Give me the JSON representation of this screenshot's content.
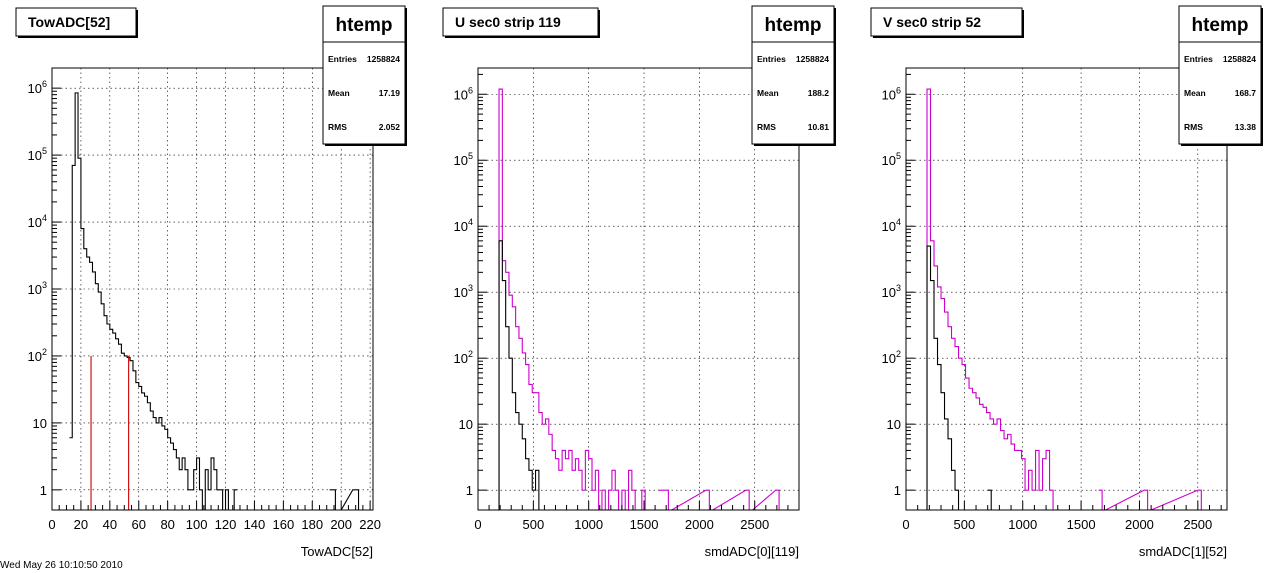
{
  "footer_text": "Wed May 26 10:10:50 2010",
  "chart_data": [
    {
      "type": "bar",
      "title": "TowADC[52]",
      "xlabel": "TowADC[52]",
      "ylabel": "",
      "log_y": true,
      "xlim": [
        0,
        222
      ],
      "ylim": [
        0.5,
        2000000
      ],
      "grid": true,
      "x_ticks": [
        0,
        20,
        40,
        60,
        80,
        100,
        120,
        140,
        160,
        180,
        200,
        220
      ],
      "y_ticks": [
        {
          "value": 1,
          "label": "1"
        },
        {
          "value": 10,
          "label": "10"
        },
        {
          "value": 100,
          "label": "10^2"
        },
        {
          "value": 1000,
          "label": "10^3"
        },
        {
          "value": 10000,
          "label": "10^4"
        },
        {
          "value": 100000,
          "label": "10^5"
        },
        {
          "value": 1000000,
          "label": "10^6"
        }
      ],
      "stats": {
        "name": "htemp",
        "entries_label": "Entries",
        "entries": "1258824",
        "mean_label": "Mean",
        "mean": "17.19",
        "rms_label": "RMS",
        "rms": "2.052"
      },
      "markers": [
        {
          "x": 27,
          "top": 100,
          "color": "#cc0000"
        },
        {
          "x": 53,
          "top": 100,
          "color": "#cc0000"
        }
      ],
      "series": [
        {
          "color": "#000000",
          "x": [
            12,
            14,
            16,
            18,
            20,
            22,
            24,
            26,
            28,
            30,
            32,
            34,
            36,
            38,
            40,
            42,
            44,
            46,
            48,
            50,
            52,
            54,
            56,
            58,
            60,
            62,
            64,
            66,
            68,
            70,
            72,
            74,
            76,
            78,
            80,
            82,
            84,
            86,
            88,
            90,
            92,
            94,
            96,
            98,
            100,
            102,
            104,
            106,
            108,
            110,
            112,
            114,
            116,
            118,
            120,
            122,
            124,
            126
          ],
          "values": [
            6,
            70000,
            850000,
            90000,
            8000,
            4000,
            3000,
            2500,
            1800,
            1200,
            900,
            600,
            400,
            300,
            250,
            220,
            180,
            150,
            110,
            100,
            95,
            85,
            60,
            40,
            35,
            28,
            25,
            20,
            15,
            12,
            10,
            12,
            9,
            8,
            6,
            5,
            4,
            3,
            2,
            3,
            2,
            1,
            1,
            2,
            3,
            1,
            0,
            2,
            1,
            3,
            2,
            1,
            1,
            0,
            1,
            0,
            0,
            1
          ]
        },
        {
          "color": "#000000",
          "x": [
            192,
            196,
            208,
            212
          ],
          "values": [
            1,
            0,
            1,
            0
          ]
        }
      ]
    },
    {
      "type": "bar",
      "title": "U sec0 strip 119",
      "xlabel": "smdADC[0][119]",
      "ylabel": "",
      "log_y": true,
      "xlim": [
        0,
        2900
      ],
      "ylim": [
        0.5,
        2500000
      ],
      "grid": true,
      "x_ticks": [
        0,
        500,
        1000,
        1500,
        2000,
        2500
      ],
      "y_ticks": [
        {
          "value": 1,
          "label": "1"
        },
        {
          "value": 10,
          "label": "10"
        },
        {
          "value": 100,
          "label": "10^2"
        },
        {
          "value": 1000,
          "label": "10^3"
        },
        {
          "value": 10000,
          "label": "10^4"
        },
        {
          "value": 100000,
          "label": "10^5"
        },
        {
          "value": 1000000,
          "label": "10^6"
        }
      ],
      "stats": {
        "name": "htemp",
        "entries_label": "Entries",
        "entries": "1258824",
        "mean_label": "Mean",
        "mean": "188.2",
        "rms_label": "RMS",
        "rms": "10.81"
      },
      "markers": [],
      "series": [
        {
          "color": "#cc00cc",
          "x": [
            160,
            190,
            220,
            250,
            280,
            310,
            340,
            370,
            400,
            430,
            460,
            490,
            520,
            550,
            580,
            610,
            640,
            670,
            700,
            730,
            760,
            790,
            820,
            850,
            880,
            910,
            940,
            970,
            1000,
            1030,
            1060,
            1090,
            1120,
            1150,
            1180,
            1210,
            1240,
            1270,
            1300,
            1330,
            1360,
            1390,
            1420,
            1450,
            1480,
            1510,
            1540
          ],
          "values": [
            0,
            1200000,
            3000,
            2000,
            900,
            600,
            300,
            200,
            120,
            80,
            40,
            30,
            30,
            15,
            10,
            12,
            7,
            4,
            3,
            2,
            4,
            3,
            4,
            2,
            3,
            2,
            1,
            4,
            3,
            1,
            2,
            0,
            1,
            0,
            1,
            2,
            1,
            0,
            1,
            0,
            2,
            1,
            0,
            0,
            1,
            0,
            0
          ]
        },
        {
          "color": "#cc00cc",
          "x": [
            1630,
            1660,
            1690,
            1720,
            2060,
            2090,
            2420,
            2450,
            2690,
            2720
          ],
          "values": [
            1,
            1,
            1,
            0,
            1,
            0,
            1,
            0,
            1,
            0
          ]
        },
        {
          "color": "#000000",
          "x": [
            160,
            190,
            220,
            250,
            280,
            310,
            340,
            370,
            400,
            430,
            460,
            490,
            520,
            550
          ],
          "values": [
            0,
            6000,
            1500,
            300,
            100,
            30,
            15,
            10,
            6,
            3,
            2,
            1,
            2,
            0
          ]
        }
      ]
    },
    {
      "type": "bar",
      "title": "V sec0 strip 52",
      "xlabel": "smdADC[1][52]",
      "ylabel": "",
      "log_y": true,
      "xlim": [
        0,
        2750
      ],
      "ylim": [
        0.5,
        2500000
      ],
      "grid": true,
      "x_ticks": [
        0,
        500,
        1000,
        1500,
        2000,
        2500
      ],
      "y_ticks": [
        {
          "value": 1,
          "label": "1"
        },
        {
          "value": 10,
          "label": "10"
        },
        {
          "value": 100,
          "label": "10^2"
        },
        {
          "value": 1000,
          "label": "10^3"
        },
        {
          "value": 10000,
          "label": "10^4"
        },
        {
          "value": 100000,
          "label": "10^5"
        },
        {
          "value": 1000000,
          "label": "10^6"
        }
      ],
      "stats": {
        "name": "htemp",
        "entries_label": "Entries",
        "entries": "1258824",
        "mean_label": "Mean",
        "mean": "168.7",
        "rms_label": "RMS",
        "rms": "13.38"
      },
      "markers": [],
      "series": [
        {
          "color": "#cc00cc",
          "x": [
            150,
            180,
            210,
            240,
            270,
            300,
            330,
            360,
            390,
            420,
            450,
            480,
            510,
            540,
            570,
            600,
            630,
            660,
            690,
            720,
            750,
            780,
            810,
            840,
            870,
            900,
            930,
            960,
            990,
            1020,
            1050,
            1080,
            1110,
            1140,
            1170,
            1200,
            1230,
            1260
          ],
          "values": [
            0,
            1200000,
            6000,
            2500,
            1200,
            800,
            500,
            300,
            200,
            150,
            100,
            80,
            50,
            35,
            30,
            25,
            20,
            18,
            15,
            12,
            10,
            12,
            8,
            6,
            7,
            5,
            4,
            4,
            3,
            1,
            2,
            1,
            4,
            1,
            3,
            4,
            1,
            0
          ]
        },
        {
          "color": "#cc00cc",
          "x": [
            1650,
            1680,
            2040,
            2070,
            2500,
            2530
          ],
          "values": [
            1,
            0,
            1,
            0,
            1,
            0
          ]
        },
        {
          "color": "#000000",
          "x": [
            150,
            180,
            210,
            240,
            270,
            300,
            330,
            360,
            390,
            420,
            450
          ],
          "values": [
            0,
            5000,
            1500,
            200,
            80,
            30,
            12,
            6,
            2,
            1,
            0
          ]
        },
        {
          "color": "#000000",
          "x": [
            700,
            730
          ],
          "values": [
            1,
            0
          ]
        }
      ]
    }
  ]
}
